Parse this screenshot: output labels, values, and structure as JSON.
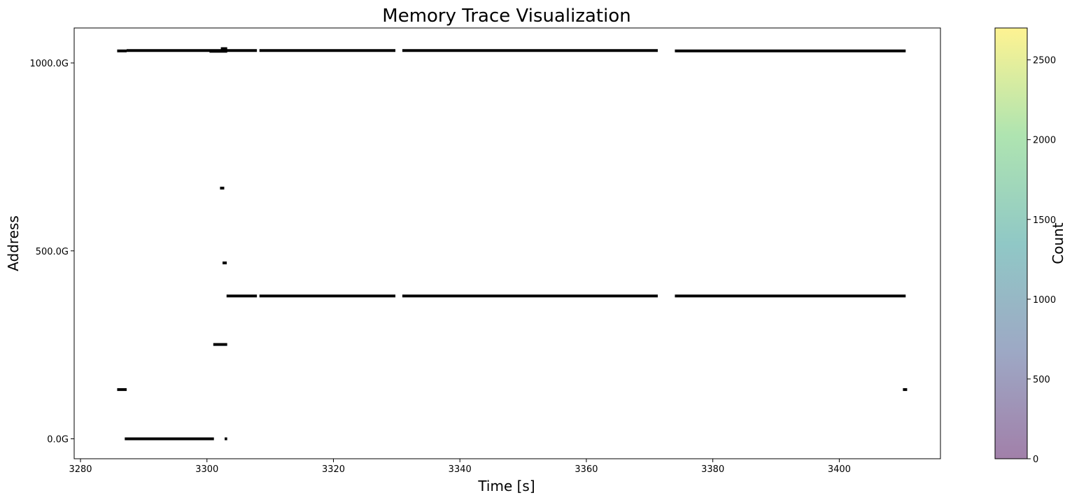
{
  "chart_data": {
    "type": "scatter",
    "title": "Memory Trace Visualization",
    "xlabel": "Time [s]",
    "ylabel": "Address",
    "xlim": [
      3279,
      3416
    ],
    "ylim": [
      -53,
      1093
    ],
    "xticks": [
      3280,
      3300,
      3320,
      3340,
      3360,
      3380,
      3400
    ],
    "yticks": [
      {
        "value": 0,
        "label": "0.0G"
      },
      {
        "value": 500,
        "label": "500.0G"
      },
      {
        "value": 1000,
        "label": "1000.0G"
      }
    ],
    "marker_color": "#000000",
    "segments": [
      {
        "x0": 3285.8,
        "x1": 3287.3,
        "y": 1032
      },
      {
        "x0": 3287.3,
        "x1": 3307.9,
        "y": 1033
      },
      {
        "x0": 3300.4,
        "x1": 3303.2,
        "y": 1031
      },
      {
        "x0": 3302.2,
        "x1": 3303.2,
        "y": 1038
      },
      {
        "x0": 3308.3,
        "x1": 3329.8,
        "y": 1033
      },
      {
        "x0": 3330.9,
        "x1": 3371.3,
        "y": 1033
      },
      {
        "x0": 3374.0,
        "x1": 3410.5,
        "y": 1032
      },
      {
        "x0": 3303.1,
        "x1": 3307.9,
        "y": 380
      },
      {
        "x0": 3308.3,
        "x1": 3329.8,
        "y": 380
      },
      {
        "x0": 3330.9,
        "x1": 3371.3,
        "y": 380
      },
      {
        "x0": 3374.0,
        "x1": 3410.5,
        "y": 380
      },
      {
        "x0": 3301.0,
        "x1": 3303.2,
        "y": 251
      },
      {
        "x0": 3285.8,
        "x1": 3287.3,
        "y": 131
      },
      {
        "x0": 3287.0,
        "x1": 3301.1,
        "y": 0
      },
      {
        "x0": 3302.8,
        "x1": 3303.2,
        "y": 0
      }
    ],
    "points": [
      {
        "x": 3302.4,
        "y": 667
      },
      {
        "x": 3302.8,
        "y": 468
      },
      {
        "x": 3410.4,
        "y": 131
      }
    ],
    "colorbar": {
      "label": "Count",
      "range": [
        0,
        2700
      ],
      "ticks": [
        0,
        500,
        1000,
        1500,
        2000,
        2500
      ],
      "colormap": [
        "#440154",
        "#3b528b",
        "#21918c",
        "#5ec962",
        "#fde725"
      ],
      "alpha": 0.5
    }
  }
}
